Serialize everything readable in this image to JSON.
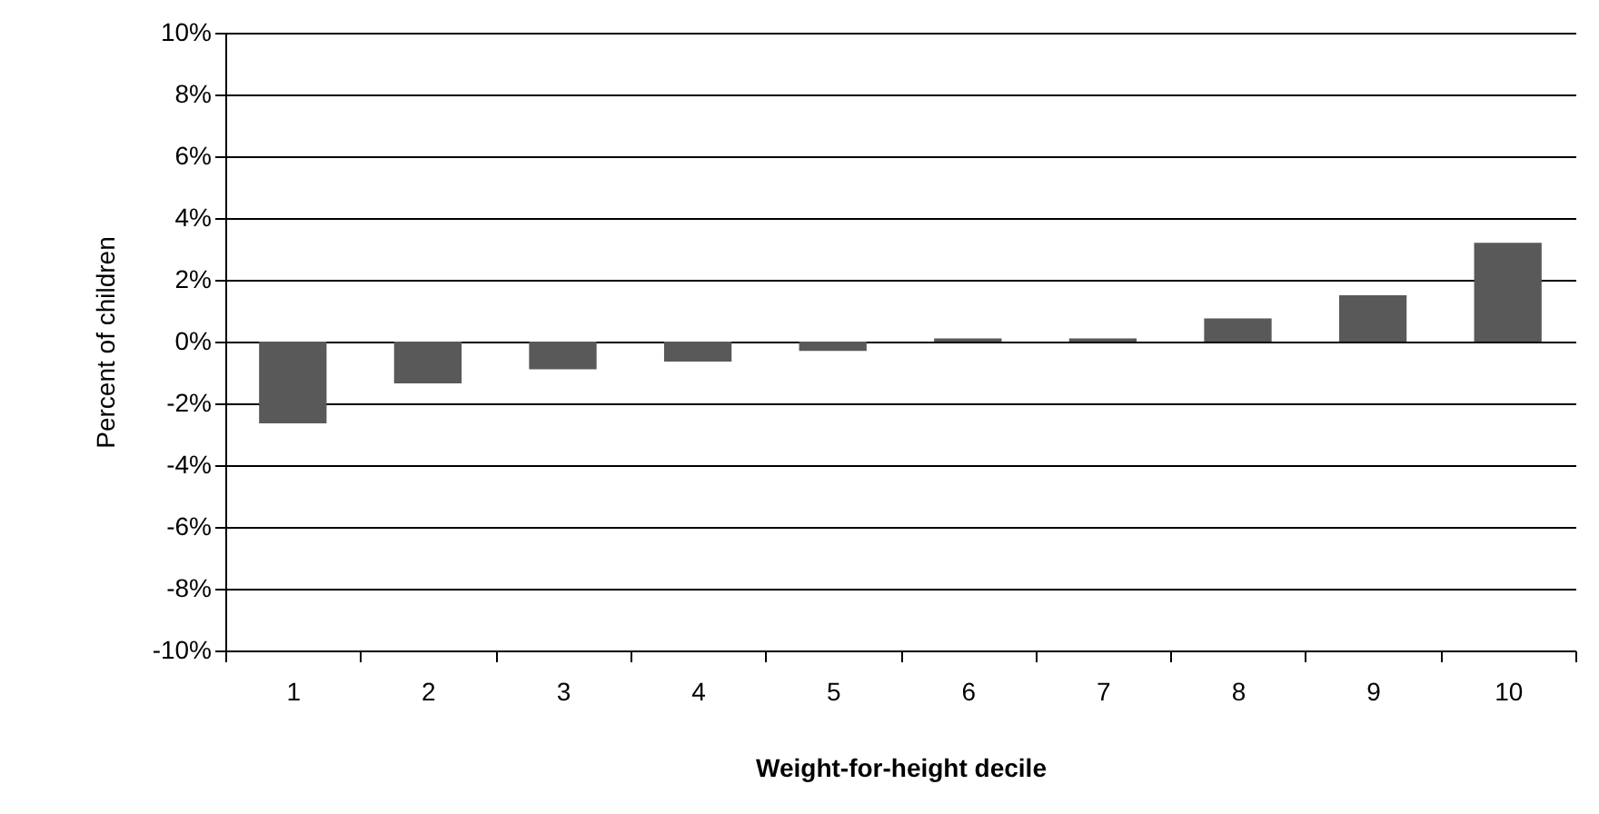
{
  "chart_data": {
    "type": "bar",
    "xlabel": "Weight-for-height decile",
    "ylabel": "Percent of children",
    "categories": [
      "1",
      "2",
      "3",
      "4",
      "5",
      "6",
      "7",
      "8",
      "9",
      "10"
    ],
    "values": [
      -2.65,
      -1.35,
      -0.9,
      -0.65,
      -0.3,
      0.1,
      0.1,
      0.75,
      1.5,
      3.2
    ],
    "color": "#595959",
    "ylim": [
      -10,
      10
    ],
    "yticks": [
      {
        "value": -10,
        "label": "-10%"
      },
      {
        "value": -8,
        "label": "-8%"
      },
      {
        "value": -6,
        "label": "-6%"
      },
      {
        "value": -4,
        "label": "-4%"
      },
      {
        "value": -2,
        "label": "-2%"
      },
      {
        "value": 0,
        "label": "0%"
      },
      {
        "value": 2,
        "label": "2%"
      },
      {
        "value": 4,
        "label": "4%"
      },
      {
        "value": 6,
        "label": "6%"
      },
      {
        "value": 8,
        "label": "8%"
      },
      {
        "value": 10,
        "label": "10%"
      }
    ],
    "grid": "y"
  }
}
